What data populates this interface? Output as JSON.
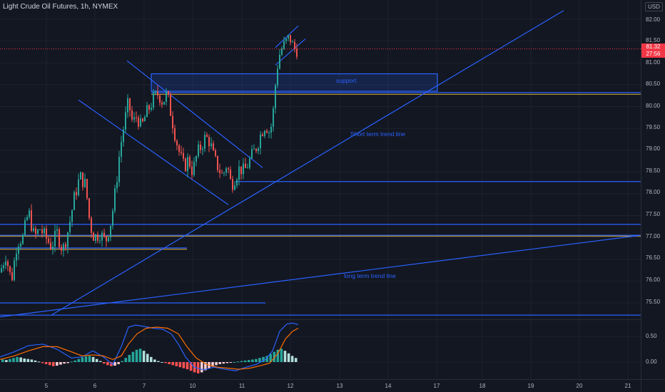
{
  "header": {
    "title": "Light Crude Oil Futures, 1h, NYMEX",
    "currency": "USD"
  },
  "price_axis": {
    "ticks": [
      "82.00",
      "81.50",
      "81.00",
      "80.50",
      "80.00",
      "79.50",
      "79.00",
      "78.50",
      "78.00",
      "77.50",
      "77.00",
      "76.50",
      "76.00",
      "75.50"
    ]
  },
  "last_price": {
    "value": "81.32",
    "countdown": "27:56"
  },
  "time_axis": {
    "ticks": [
      "5",
      "6",
      "7",
      "10",
      "11",
      "12",
      "13",
      "14",
      "17",
      "18",
      "19",
      "20",
      "21"
    ]
  },
  "annotations": {
    "support": "support",
    "short_trend": "Short term trend line",
    "long_trend": "long term trend line"
  },
  "macd_axis": {
    "ticks": [
      "0.50",
      "0.00"
    ]
  },
  "colors": {
    "background": "#131722",
    "up": "#26a69a",
    "down": "#ef5350",
    "drawing": "#2962ff",
    "macd_line": "#2962ff",
    "signal_line": "#ff6d00",
    "last_price": "#f23645"
  },
  "chart_data": [
    {
      "type": "candlestick",
      "title": "Light Crude Oil Futures, 1h, NYMEX",
      "x_ticks": [
        "5",
        "6",
        "7",
        "10",
        "11",
        "12",
        "13",
        "14",
        "17",
        "18",
        "19",
        "20",
        "21"
      ],
      "ylim": [
        75.2,
        82.2
      ],
      "last_price": 81.32,
      "close_path": [
        [
          0,
          76.2
        ],
        [
          8,
          76.6
        ],
        [
          16,
          76.0
        ],
        [
          24,
          76.9
        ],
        [
          32,
          77.0
        ],
        [
          40,
          77.6
        ],
        [
          48,
          77.0
        ],
        [
          56,
          77.2
        ],
        [
          64,
          77.0
        ],
        [
          72,
          76.8
        ],
        [
          80,
          77.1
        ],
        [
          88,
          76.7
        ],
        [
          96,
          77.2
        ],
        [
          104,
          77.9
        ],
        [
          112,
          78.4
        ],
        [
          120,
          78.2
        ],
        [
          126,
          77.3
        ],
        [
          132,
          77.0
        ],
        [
          140,
          77.1
        ],
        [
          148,
          76.9
        ],
        [
          156,
          77.4
        ],
        [
          162,
          78.1
        ],
        [
          168,
          79.0
        ],
        [
          174,
          79.6
        ],
        [
          180,
          80.1
        ],
        [
          186,
          79.6
        ],
        [
          192,
          79.8
        ],
        [
          198,
          79.5
        ],
        [
          204,
          79.8
        ],
        [
          210,
          80.0
        ],
        [
          216,
          80.2
        ],
        [
          222,
          80.3
        ],
        [
          228,
          80.1
        ],
        [
          234,
          80.3
        ],
        [
          240,
          79.8
        ],
        [
          246,
          79.3
        ],
        [
          252,
          78.9
        ],
        [
          258,
          78.6
        ],
        [
          264,
          78.8
        ],
        [
          270,
          78.5
        ],
        [
          276,
          78.9
        ],
        [
          282,
          79.1
        ],
        [
          288,
          79.3
        ],
        [
          294,
          79.2
        ],
        [
          300,
          78.8
        ],
        [
          306,
          78.6
        ],
        [
          312,
          78.4
        ],
        [
          318,
          78.7
        ],
        [
          324,
          78.2
        ],
        [
          330,
          78.4
        ],
        [
          336,
          78.6
        ],
        [
          342,
          78.5
        ],
        [
          348,
          78.7
        ],
        [
          354,
          78.9
        ],
        [
          360,
          79.1
        ],
        [
          366,
          79.4
        ],
        [
          372,
          79.6
        ],
        [
          378,
          79.4
        ],
        [
          382,
          79.7
        ],
        [
          386,
          80.5
        ],
        [
          390,
          81.1
        ],
        [
          394,
          81.3
        ],
        [
          398,
          81.4
        ],
        [
          402,
          81.5
        ],
        [
          406,
          81.6
        ],
        [
          410,
          81.4
        ],
        [
          414,
          81.3
        ],
        [
          418,
          81.32
        ]
      ]
    },
    {
      "type": "line",
      "title": "MACD",
      "ylim": [
        -0.3,
        0.8
      ],
      "series": [
        {
          "name": "",
          "color": "#2962ff",
          "points": [
            [
              0,
              0.1
            ],
            [
              20,
              0.2
            ],
            [
              40,
              0.32
            ],
            [
              60,
              0.35
            ],
            [
              80,
              0.25
            ],
            [
              100,
              0.08
            ],
            [
              115,
              0.1
            ],
            [
              130,
              0.22
            ],
            [
              145,
              0.1
            ],
            [
              158,
              -0.05
            ],
            [
              170,
              0.3
            ],
            [
              180,
              0.68
            ],
            [
              190,
              0.72
            ],
            [
              200,
              0.7
            ],
            [
              215,
              0.66
            ],
            [
              228,
              0.64
            ],
            [
              240,
              0.55
            ],
            [
              250,
              0.35
            ],
            [
              260,
              0.1
            ],
            [
              272,
              -0.1
            ],
            [
              285,
              -0.15
            ],
            [
              300,
              -0.1
            ],
            [
              315,
              -0.14
            ],
            [
              330,
              -0.17
            ],
            [
              345,
              -0.1
            ],
            [
              360,
              -0.04
            ],
            [
              372,
              0.05
            ],
            [
              382,
              0.22
            ],
            [
              392,
              0.6
            ],
            [
              402,
              0.74
            ],
            [
              410,
              0.76
            ],
            [
              418,
              0.73
            ]
          ]
        },
        {
          "name": "",
          "color": "#ff6d00",
          "points": [
            [
              0,
              0.05
            ],
            [
              20,
              0.12
            ],
            [
              40,
              0.22
            ],
            [
              60,
              0.3
            ],
            [
              80,
              0.3
            ],
            [
              100,
              0.2
            ],
            [
              115,
              0.12
            ],
            [
              130,
              0.14
            ],
            [
              145,
              0.12
            ],
            [
              158,
              0.05
            ],
            [
              170,
              0.12
            ],
            [
              180,
              0.35
            ],
            [
              192,
              0.55
            ],
            [
              205,
              0.66
            ],
            [
              220,
              0.68
            ],
            [
              235,
              0.66
            ],
            [
              250,
              0.55
            ],
            [
              262,
              0.3
            ],
            [
              275,
              0.08
            ],
            [
              290,
              -0.05
            ],
            [
              305,
              -0.1
            ],
            [
              320,
              -0.12
            ],
            [
              335,
              -0.14
            ],
            [
              350,
              -0.12
            ],
            [
              365,
              -0.07
            ],
            [
              378,
              -0.02
            ],
            [
              390,
              0.18
            ],
            [
              400,
              0.45
            ],
            [
              410,
              0.6
            ],
            [
              418,
              0.66
            ]
          ]
        }
      ],
      "histogram": [
        0.05,
        0.04,
        0.06,
        0.08,
        0.1,
        0.09,
        0.07,
        0.06,
        0.05,
        0.03,
        0.01,
        -0.02,
        -0.04,
        -0.06,
        -0.08,
        -0.07,
        -0.05,
        -0.03,
        -0.02,
        0.01,
        0.03,
        0.06,
        0.09,
        0.11,
        0.12,
        0.1,
        0.06,
        0.02,
        -0.03,
        -0.06,
        -0.08,
        -0.07,
        -0.04,
        0.02,
        0.08,
        0.14,
        0.2,
        0.24,
        0.26,
        0.22,
        0.16,
        0.1,
        0.05,
        0.02,
        0.0,
        -0.02,
        -0.04,
        -0.06,
        -0.08,
        -0.1,
        -0.12,
        -0.14,
        -0.17,
        -0.2,
        -0.22,
        -0.2,
        -0.16,
        -0.12,
        -0.09,
        -0.06,
        -0.04,
        -0.03,
        -0.02,
        -0.01,
        0.0,
        0.01,
        0.02,
        0.03,
        0.04,
        0.05,
        0.06,
        0.08,
        0.1,
        0.12,
        0.16,
        0.2,
        0.24,
        0.26,
        0.22,
        0.17,
        0.12,
        0.08
      ]
    }
  ]
}
